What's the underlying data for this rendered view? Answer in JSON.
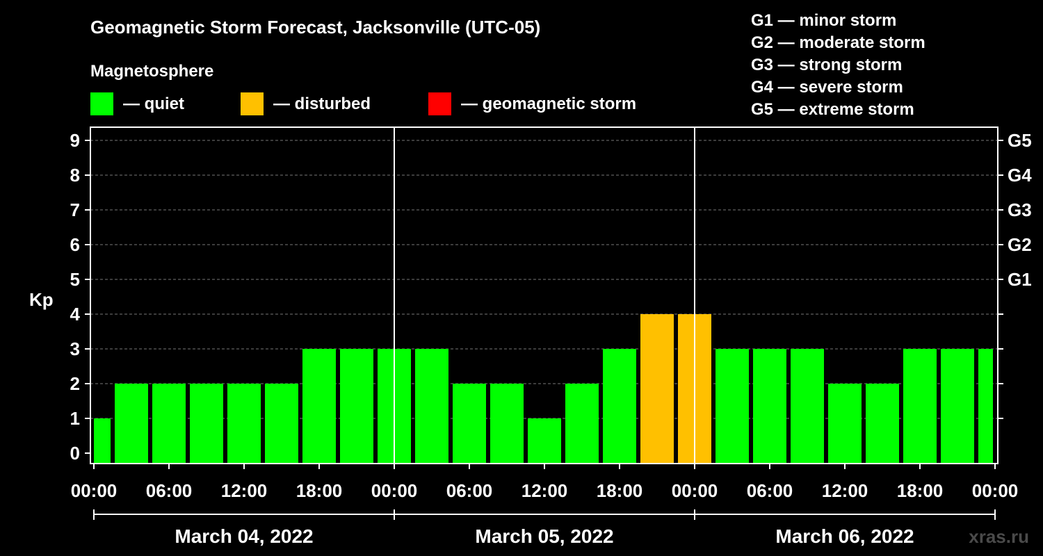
{
  "chart_data": {
    "type": "bar",
    "title": "Geomagnetic Storm Forecast, Jacksonville (UTC-05)",
    "legend_title": "Magnetosphere",
    "legend": [
      {
        "label": "— quiet",
        "color": "#00ff00"
      },
      {
        "label": "— disturbed",
        "color": "#ffc000"
      },
      {
        "label": "— geomagnetic storm",
        "color": "#ff0000"
      }
    ],
    "g_scale_legend": [
      "G1 — minor storm",
      "G2 — moderate storm",
      "G3 — strong storm",
      "G4 — severe storm",
      "G5 — extreme storm"
    ],
    "ylabel": "Kp",
    "ylim": [
      0,
      9
    ],
    "yticks": [
      "0",
      "1",
      "2",
      "3",
      "4",
      "5",
      "6",
      "7",
      "8",
      "9"
    ],
    "right_ticks": [
      {
        "kp": 5,
        "label": "G1"
      },
      {
        "kp": 6,
        "label": "G2"
      },
      {
        "kp": 7,
        "label": "G3"
      },
      {
        "kp": 8,
        "label": "G4"
      },
      {
        "kp": 9,
        "label": "G5"
      }
    ],
    "x_tick_labels": [
      "00:00",
      "06:00",
      "12:00",
      "18:00",
      "00:00",
      "06:00",
      "12:00",
      "18:00",
      "00:00",
      "06:00",
      "12:00",
      "18:00",
      "00:00"
    ],
    "days": [
      "March 04, 2022",
      "March 05, 2022",
      "March 06, 2022"
    ],
    "values": [
      1,
      2,
      2,
      2,
      2,
      2,
      3,
      3,
      3,
      3,
      2,
      2,
      1,
      2,
      3,
      4,
      4,
      3,
      3,
      3,
      2,
      2,
      3,
      3,
      3
    ],
    "colors": {
      "quiet": "#00ff00",
      "disturbed": "#ffc000",
      "storm": "#ff0000"
    },
    "grid": "dashed horizontal at each Kp"
  },
  "watermark": "xras.ru"
}
